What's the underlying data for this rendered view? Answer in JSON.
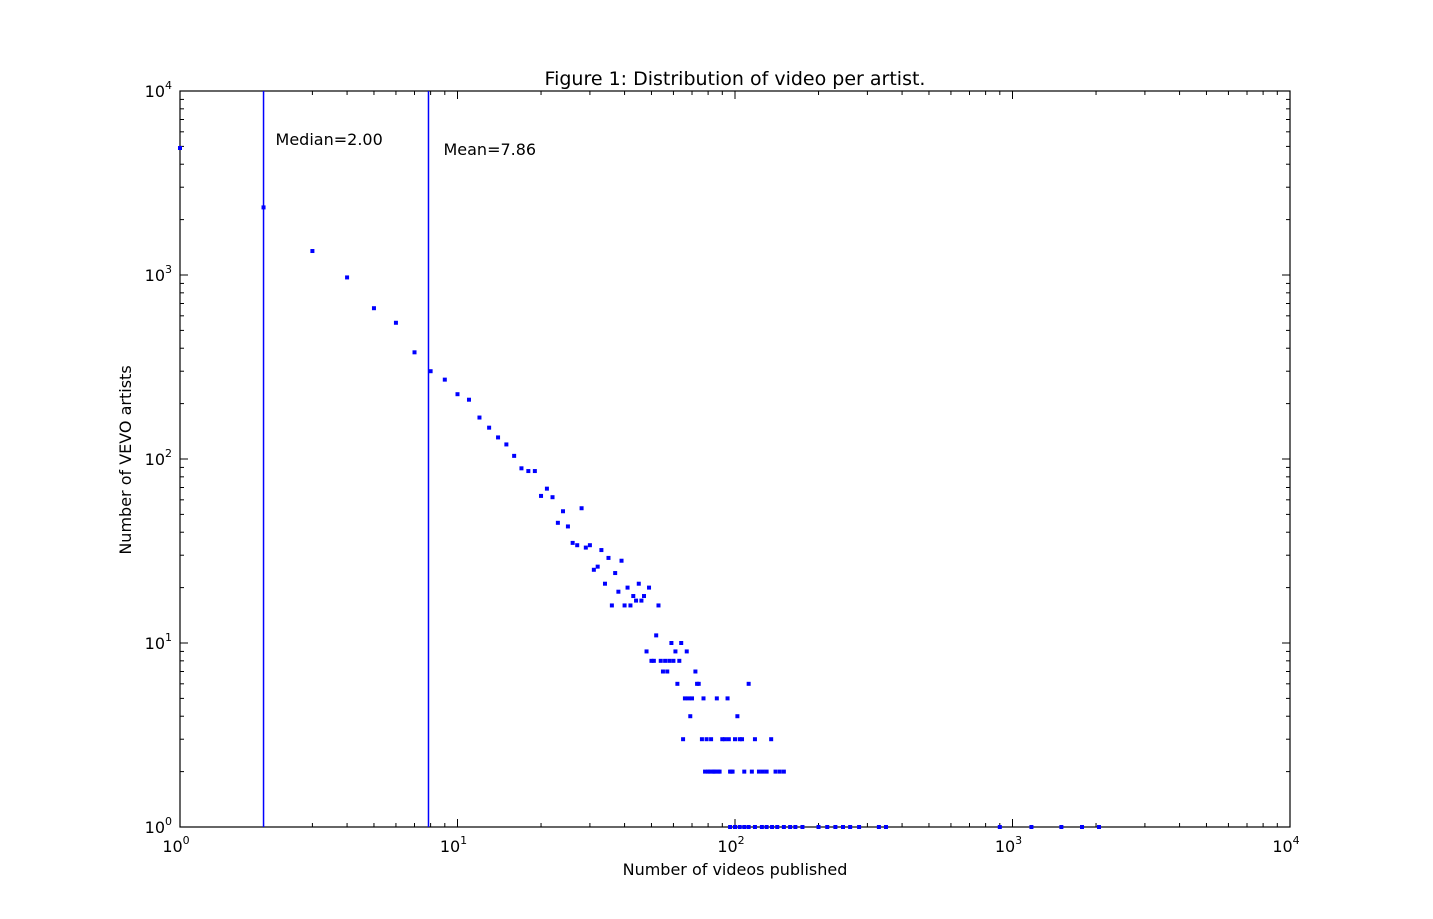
{
  "chart_data": {
    "type": "scatter",
    "title": "Figure 1: Distribution of video per artist.",
    "xlabel": "Number of videos published",
    "ylabel": "Number of VEVO artists",
    "xscale": "log",
    "yscale": "log",
    "xlim": [
      1,
      10000
    ],
    "ylim": [
      1,
      10000
    ],
    "grid": false,
    "color": "#0000ff",
    "x_ticks": [
      {
        "base": "10",
        "exp": "0",
        "value": 1
      },
      {
        "base": "10",
        "exp": "1",
        "value": 10
      },
      {
        "base": "10",
        "exp": "2",
        "value": 100
      },
      {
        "base": "10",
        "exp": "3",
        "value": 1000
      },
      {
        "base": "10",
        "exp": "4",
        "value": 10000
      }
    ],
    "y_ticks": [
      {
        "base": "10",
        "exp": "0",
        "value": 1
      },
      {
        "base": "10",
        "exp": "1",
        "value": 10
      },
      {
        "base": "10",
        "exp": "2",
        "value": 100
      },
      {
        "base": "10",
        "exp": "3",
        "value": 1000
      },
      {
        "base": "10",
        "exp": "4",
        "value": 10000
      }
    ],
    "vlines": [
      {
        "x": 2.0,
        "label": "Median=2.00"
      },
      {
        "x": 7.86,
        "label": "Mean=7.86"
      }
    ],
    "series": [
      {
        "points": [
          [
            1,
            4900
          ],
          [
            2,
            2330
          ],
          [
            3,
            1350
          ],
          [
            4,
            970
          ],
          [
            5,
            660
          ],
          [
            6,
            550
          ],
          [
            7,
            380
          ],
          [
            8,
            300
          ],
          [
            9,
            270
          ],
          [
            10,
            225
          ],
          [
            11,
            210
          ],
          [
            12,
            168
          ],
          [
            13,
            148
          ],
          [
            14,
            131
          ],
          [
            15,
            120
          ],
          [
            16,
            104
          ],
          [
            17,
            89
          ],
          [
            18,
            86
          ],
          [
            19,
            86
          ],
          [
            20,
            63
          ],
          [
            21,
            69
          ],
          [
            22,
            62
          ],
          [
            23,
            45
          ],
          [
            24,
            52
          ],
          [
            25,
            43
          ],
          [
            26,
            35
          ],
          [
            27,
            34
          ],
          [
            28,
            54
          ],
          [
            29,
            33
          ],
          [
            30,
            34
          ],
          [
            31,
            25
          ],
          [
            32,
            26
          ],
          [
            33,
            32
          ],
          [
            34,
            21
          ],
          [
            35,
            29
          ],
          [
            36,
            16
          ],
          [
            37,
            24
          ],
          [
            38,
            19
          ],
          [
            39,
            28
          ],
          [
            40,
            16
          ],
          [
            41,
            20
          ],
          [
            42,
            16
          ],
          [
            43,
            18
          ],
          [
            44,
            17
          ],
          [
            45,
            21
          ],
          [
            46,
            17
          ],
          [
            47,
            18
          ],
          [
            48,
            9
          ],
          [
            49,
            20
          ],
          [
            50,
            8
          ],
          [
            51,
            8
          ],
          [
            52,
            11
          ],
          [
            53,
            16
          ],
          [
            54,
            8
          ],
          [
            55,
            7
          ],
          [
            56,
            8
          ],
          [
            57,
            7
          ],
          [
            58,
            8
          ],
          [
            59,
            10
          ],
          [
            60,
            8
          ],
          [
            61,
            9
          ],
          [
            62,
            6
          ],
          [
            63,
            8
          ],
          [
            64,
            10
          ],
          [
            65,
            3
          ],
          [
            66,
            5
          ],
          [
            67,
            9
          ],
          [
            68,
            5
          ],
          [
            69,
            4
          ],
          [
            70,
            5
          ],
          [
            72,
            7
          ],
          [
            73,
            6
          ],
          [
            74,
            6
          ],
          [
            76,
            3
          ],
          [
            77,
            5
          ],
          [
            78,
            2
          ],
          [
            79,
            3
          ],
          [
            80,
            2
          ],
          [
            81,
            2
          ],
          [
            82,
            3
          ],
          [
            83,
            2
          ],
          [
            84,
            2
          ],
          [
            85,
            2
          ],
          [
            86,
            5
          ],
          [
            87,
            2
          ],
          [
            88,
            2
          ],
          [
            90,
            3
          ],
          [
            92,
            3
          ],
          [
            94,
            5
          ],
          [
            95,
            3
          ],
          [
            96,
            2
          ],
          [
            97,
            2
          ],
          [
            98,
            2
          ],
          [
            100,
            3
          ],
          [
            102,
            4
          ],
          [
            104,
            3
          ],
          [
            106,
            3
          ],
          [
            108,
            2
          ],
          [
            112,
            6
          ],
          [
            115,
            2
          ],
          [
            118,
            3
          ],
          [
            122,
            2
          ],
          [
            126,
            2
          ],
          [
            130,
            2
          ],
          [
            135,
            3
          ],
          [
            140,
            2
          ],
          [
            145,
            2
          ],
          [
            150,
            2
          ],
          [
            96,
            1
          ],
          [
            100,
            1
          ],
          [
            104,
            1
          ],
          [
            108,
            1
          ],
          [
            112,
            1
          ],
          [
            118,
            1
          ],
          [
            125,
            1
          ],
          [
            130,
            1
          ],
          [
            136,
            1
          ],
          [
            142,
            1
          ],
          [
            150,
            1
          ],
          [
            158,
            1
          ],
          [
            165,
            1
          ],
          [
            175,
            1
          ],
          [
            200,
            1
          ],
          [
            215,
            1
          ],
          [
            230,
            1
          ],
          [
            245,
            1
          ],
          [
            260,
            1
          ],
          [
            280,
            1
          ],
          [
            330,
            1
          ],
          [
            350,
            1
          ],
          [
            900,
            1
          ],
          [
            1170,
            1
          ],
          [
            1500,
            1
          ],
          [
            1780,
            1
          ],
          [
            2050,
            1
          ]
        ]
      }
    ]
  }
}
